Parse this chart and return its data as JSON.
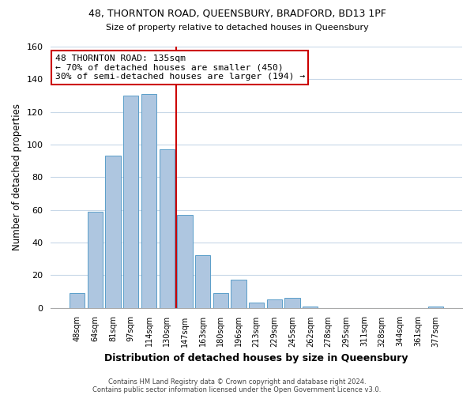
{
  "title1": "48, THORNTON ROAD, QUEENSBURY, BRADFORD, BD13 1PF",
  "title2": "Size of property relative to detached houses in Queensbury",
  "xlabel": "Distribution of detached houses by size in Queensbury",
  "ylabel": "Number of detached properties",
  "bar_labels": [
    "48sqm",
    "64sqm",
    "81sqm",
    "97sqm",
    "114sqm",
    "130sqm",
    "147sqm",
    "163sqm",
    "180sqm",
    "196sqm",
    "213sqm",
    "229sqm",
    "245sqm",
    "262sqm",
    "278sqm",
    "295sqm",
    "311sqm",
    "328sqm",
    "344sqm",
    "361sqm",
    "377sqm"
  ],
  "bar_heights": [
    9,
    59,
    93,
    130,
    131,
    97,
    57,
    32,
    9,
    17,
    3,
    5,
    6,
    1,
    0,
    0,
    0,
    0,
    0,
    0,
    1
  ],
  "bar_color": "#aec6e0",
  "bar_edge_color": "#5b9ec9",
  "vline_color": "#cc0000",
  "vline_x_index": 6,
  "ylim": [
    0,
    160
  ],
  "yticks": [
    0,
    20,
    40,
    60,
    80,
    100,
    120,
    140,
    160
  ],
  "annotation_text": "48 THORNTON ROAD: 135sqm\n← 70% of detached houses are smaller (450)\n30% of semi-detached houses are larger (194) →",
  "footer1": "Contains HM Land Registry data © Crown copyright and database right 2024.",
  "footer2": "Contains public sector information licensed under the Open Government Licence v3.0.",
  "figure_bg": "#ffffff",
  "plot_bg": "#ffffff",
  "grid_color": "#c8d8e8"
}
